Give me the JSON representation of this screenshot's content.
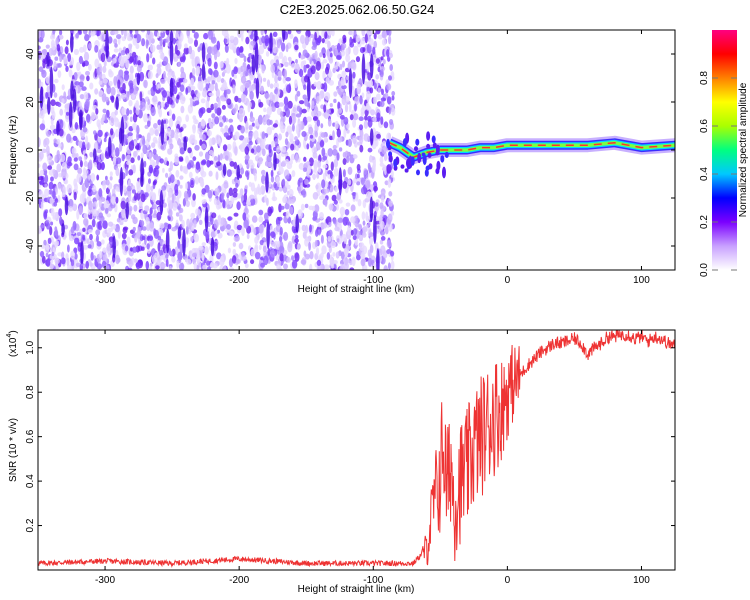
{
  "title": "C2E3.2025.062.06.50.G24",
  "chart_data": [
    {
      "type": "heatmap",
      "title": "C2E3.2025.062.06.50.G24",
      "xlabel": "Height of straight line (km)",
      "ylabel": "Frequency (Hz)",
      "xlim": [
        -350,
        125
      ],
      "ylim": [
        -50,
        50
      ],
      "xticks": [
        -300,
        -200,
        -100,
        0,
        100
      ],
      "xtick_labels": [
        "-300",
        "-200",
        "-100",
        "0",
        "100"
      ],
      "yticks": [
        -40,
        -20,
        0,
        20,
        40
      ],
      "ytick_labels": [
        "-40",
        "-20",
        "0",
        "20",
        "40"
      ],
      "colorbar": {
        "label": "Normalized spectral amplitude",
        "range": [
          0,
          1
        ],
        "ticks": [
          0.0,
          0.2,
          0.4,
          0.6,
          0.8
        ],
        "tick_labels": [
          "0.0",
          "0.2",
          "0.4",
          "0.6",
          "0.8"
        ],
        "colors": [
          "#ffffff",
          "#c8a0ff",
          "#7b00ff",
          "#0000ff",
          "#00c8ff",
          "#00ff80",
          "#aaff00",
          "#ffff00",
          "#ff8000",
          "#ff0000",
          "#ff0080"
        ]
      },
      "noise_region_x": [
        -350,
        -85
      ],
      "signal_track": {
        "x": [
          -88,
          -80,
          -70,
          -60,
          -50,
          -40,
          -30,
          -20,
          -10,
          0,
          20,
          40,
          60,
          80,
          100,
          125
        ],
        "y": [
          3,
          1,
          -3,
          -1,
          0,
          0,
          0,
          1,
          1,
          2,
          2,
          2,
          2,
          3,
          1,
          2
        ]
      },
      "grid": false
    },
    {
      "type": "line",
      "xlabel": "Height of straight line (km)",
      "ylabel": "SNR (10 * v/v)",
      "y_multiplier": "(x10",
      "y_exponent": "4",
      "y_close": ")",
      "xlim": [
        -350,
        125
      ],
      "ylim": [
        0,
        1.08
      ],
      "xticks": [
        -300,
        -200,
        -100,
        0,
        100
      ],
      "xtick_labels": [
        "-300",
        "-200",
        "-100",
        "0",
        "100"
      ],
      "yticks": [
        0.2,
        0.4,
        0.6,
        0.8,
        1.0
      ],
      "ytick_labels": [
        "0.2",
        "0.4",
        "0.6",
        "0.8",
        "1.0"
      ],
      "color": "#ee3333",
      "series": [
        {
          "x": [
            -350,
            -300,
            -250,
            -200,
            -150,
            -100,
            -70,
            -60,
            -55,
            -50,
            -48,
            -45,
            -42,
            -40,
            -35,
            -30,
            -25,
            -20,
            -15,
            -10,
            -5,
            0,
            5,
            10,
            15,
            20,
            25,
            30,
            35,
            40,
            45,
            50,
            55,
            60,
            65,
            70,
            75,
            80,
            85,
            90,
            95,
            100,
            105,
            110,
            115,
            120,
            125
          ],
          "y": [
            0.03,
            0.04,
            0.03,
            0.05,
            0.03,
            0.03,
            0.03,
            0.1,
            0.3,
            0.42,
            0.6,
            0.35,
            0.5,
            0.3,
            0.4,
            0.45,
            0.55,
            0.6,
            0.65,
            0.7,
            0.72,
            0.8,
            0.85,
            0.88,
            0.92,
            0.95,
            0.98,
            1.0,
            1.02,
            1.02,
            1.03,
            1.04,
            1.02,
            0.97,
            1.0,
            1.02,
            1.05,
            1.05,
            1.06,
            1.06,
            1.04,
            1.05,
            1.03,
            1.05,
            1.04,
            1.02,
            1.01
          ]
        }
      ],
      "grid": false
    }
  ]
}
